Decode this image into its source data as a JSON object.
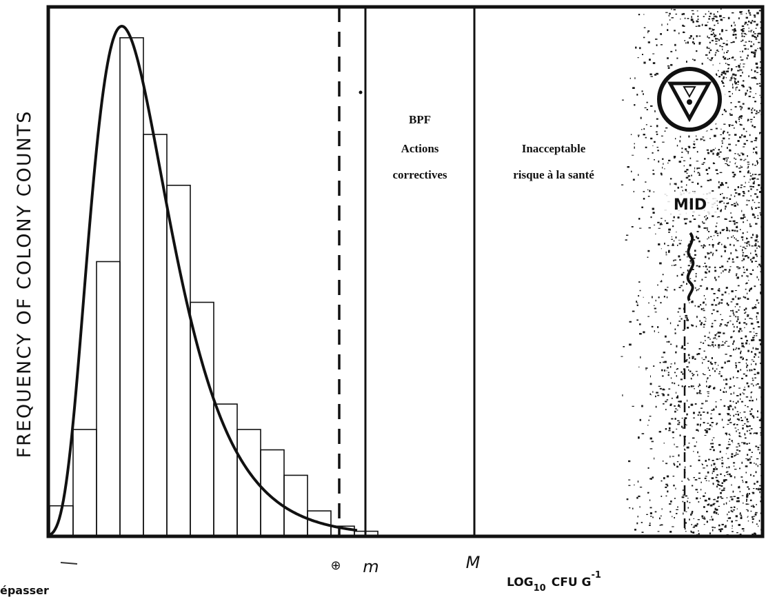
{
  "chart_data": {
    "type": "bar",
    "ylabel": "FREQUENCY OF COLONY COUNTS",
    "xlabel_main": "LOG",
    "xlabel_sub": "10",
    "xlabel_unit": "CFU G",
    "xlabel_sup": "-1",
    "thresholds": [
      {
        "label": "m",
        "style": "solid"
      },
      {
        "label": "M",
        "style": "solid"
      }
    ],
    "dashed_line_marker": "⊕",
    "histogram_heights": [
      0.06,
      0.21,
      0.54,
      0.98,
      0.79,
      0.69,
      0.46,
      0.26,
      0.21,
      0.17,
      0.12,
      0.05,
      0.02,
      0.01
    ],
    "fitted_curve": "log-normal (right-skewed)",
    "zones": [
      {
        "lines": [
          "BPF",
          "Actions",
          "correctives"
        ]
      },
      {
        "lines": [
          "Inacceptable",
          "risque à la santé"
        ]
      },
      {
        "lines": [
          "MID"
        ],
        "fill": "stippled"
      }
    ],
    "grid": false,
    "legend": "none"
  },
  "footer_fragment": "épasser"
}
